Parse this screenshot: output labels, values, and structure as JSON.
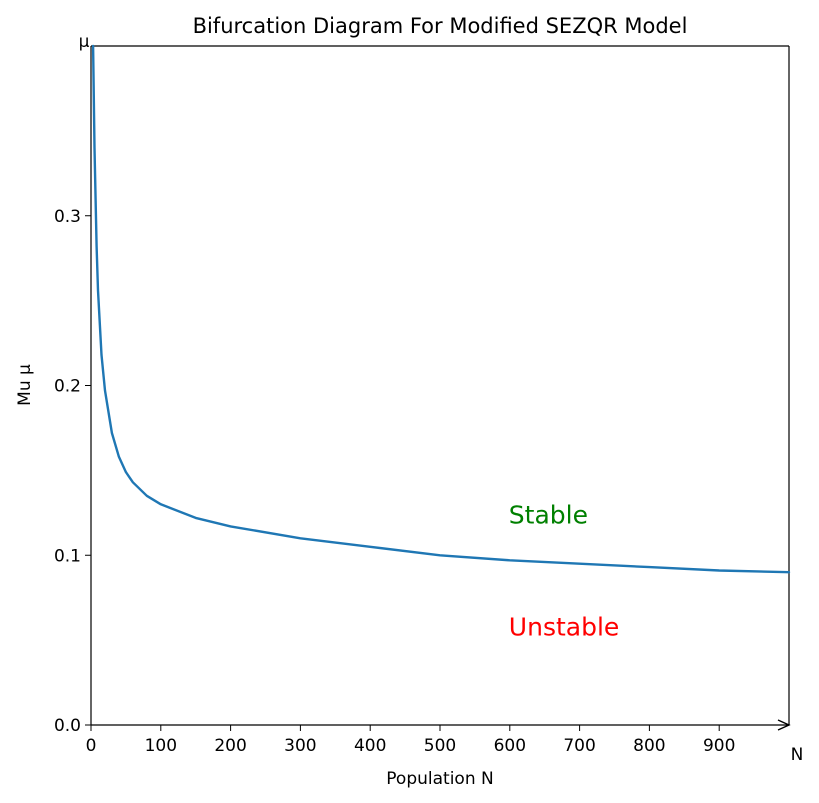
{
  "chart_data": {
    "type": "line",
    "title": "Bifurcation Diagram For Modified SEZQR Model",
    "xlabel": "Population N",
    "ylabel": "Mu μ",
    "x_axis_end_label": "N",
    "y_axis_end_label": "μ",
    "xlim": [
      0,
      1000
    ],
    "ylim": [
      0,
      0.4
    ],
    "xticks": [
      0,
      100,
      200,
      300,
      400,
      500,
      600,
      700,
      800,
      900
    ],
    "xtick_labels": [
      "0",
      "100",
      "200",
      "300",
      "400",
      "500",
      "600",
      "700",
      "800",
      "900"
    ],
    "yticks": [
      0.0,
      0.1,
      0.2,
      0.3
    ],
    "ytick_labels": [
      "0.0",
      "0.1",
      "0.2",
      "0.3"
    ],
    "grid": false,
    "series": [
      {
        "name": "critical mu",
        "color": "#1f77b4",
        "x": [
          3,
          5,
          8,
          10,
          15,
          20,
          30,
          40,
          50,
          60,
          80,
          100,
          150,
          200,
          300,
          400,
          500,
          600,
          700,
          800,
          900,
          1000
        ],
        "y": [
          0.4,
          0.34,
          0.282,
          0.256,
          0.218,
          0.197,
          0.172,
          0.158,
          0.149,
          0.143,
          0.135,
          0.13,
          0.122,
          0.117,
          0.11,
          0.105,
          0.1,
          0.097,
          0.095,
          0.093,
          0.091,
          0.09
        ]
      }
    ],
    "annotations": [
      {
        "text": "Stable",
        "x": 600,
        "y": 0.124,
        "color": "#008000"
      },
      {
        "text": "Unstable",
        "x": 600,
        "y": 0.058,
        "color": "#ff0000"
      }
    ]
  }
}
